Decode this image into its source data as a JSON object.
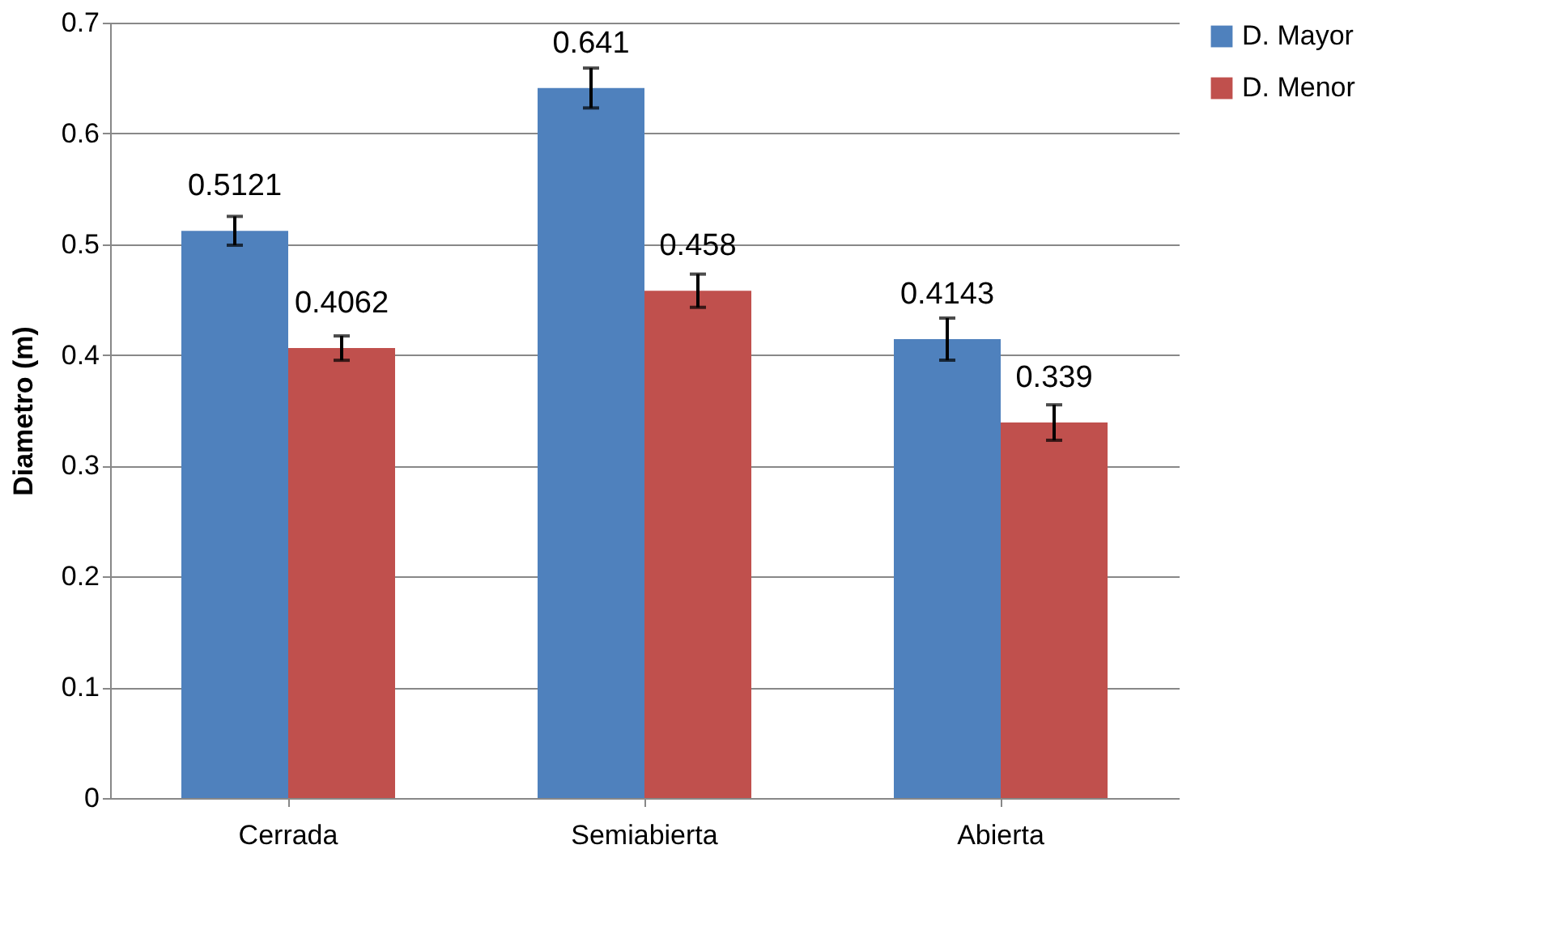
{
  "chart_data": {
    "type": "bar",
    "ylabel": "Diametro (m)",
    "categories": [
      "Cerrada",
      "Semiabierta",
      "Abierta"
    ],
    "series": [
      {
        "name": "D. Mayor",
        "color": "#4f81bd",
        "values": [
          0.5121,
          0.641,
          0.4143
        ],
        "errors": [
          0.013,
          0.018,
          0.019
        ]
      },
      {
        "name": "D. Menor",
        "color": "#c0504d",
        "values": [
          0.4062,
          0.458,
          0.339
        ],
        "errors": [
          0.011,
          0.015,
          0.016
        ]
      }
    ],
    "ylim": [
      0,
      0.7
    ],
    "yticks": [
      0,
      0.1,
      0.2,
      0.3,
      0.4,
      0.5,
      0.6,
      0.7
    ],
    "grid": "y",
    "legend": "right",
    "data_labels": true
  }
}
